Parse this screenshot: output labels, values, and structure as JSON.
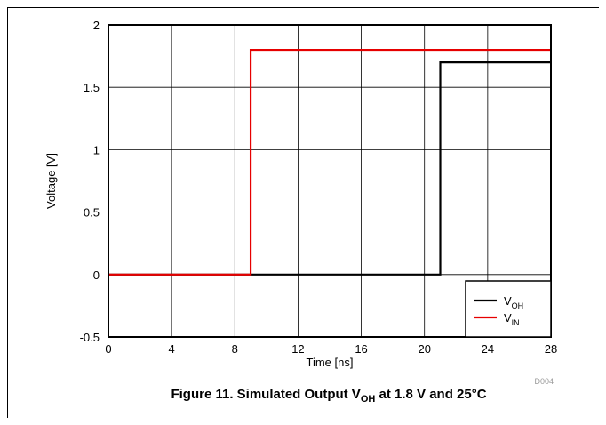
{
  "figure": {
    "caption_prefix": "Figure 11. Simulated Output V",
    "caption_sub": "OH",
    "caption_suffix": " at 1.8 V and 25°C",
    "chart_id": "D004"
  },
  "chart_data": {
    "type": "line",
    "title": "",
    "xlabel": "Time [ns]",
    "ylabel": "Voltage [V]",
    "xlim": [
      0,
      28
    ],
    "ylim": [
      -0.5,
      2
    ],
    "xticks": [
      0,
      4,
      8,
      12,
      16,
      20,
      24,
      28
    ],
    "yticks": [
      -0.5,
      0,
      0.5,
      1,
      1.5,
      2
    ],
    "xtick_labels": [
      "0",
      "4",
      "8",
      "12",
      "16",
      "20",
      "24",
      "28"
    ],
    "ytick_labels": [
      "-0.5",
      "0",
      "0.5",
      "1",
      "1.5",
      "2"
    ],
    "grid": true,
    "legend_position": "bottom-right",
    "series": [
      {
        "name": "VOH",
        "legend_main": "V",
        "legend_sub": "OH",
        "color": "#000000",
        "x": [
          0,
          21,
          21,
          28
        ],
        "y": [
          0,
          0,
          1.7,
          1.7
        ]
      },
      {
        "name": "VIN",
        "legend_main": "V",
        "legend_sub": "IN",
        "color": "#e60000",
        "x": [
          0,
          9,
          9,
          28
        ],
        "y": [
          0,
          0,
          1.8,
          1.8
        ]
      }
    ]
  }
}
